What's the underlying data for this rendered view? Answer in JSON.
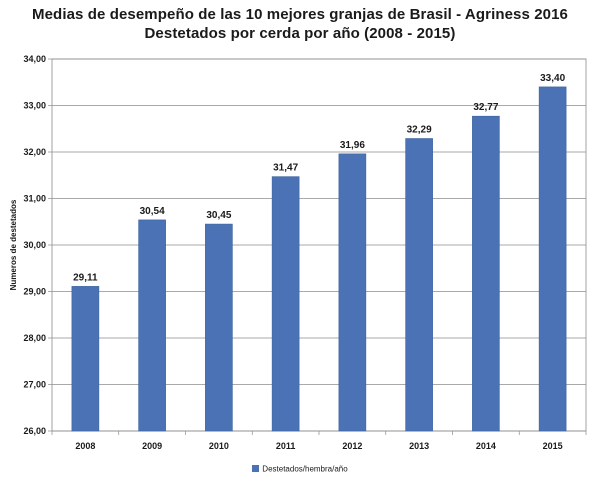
{
  "chart_data": {
    "type": "bar",
    "title": "Medias de desempeño de las 10 mejores granjas de Brasil - Agriness 2016",
    "subtitle": "Destetados por cerda por año (2008 - 2015)",
    "ylabel": "Numeros de destetados",
    "xlabel": "",
    "categories": [
      "2008",
      "2009",
      "2010",
      "2011",
      "2012",
      "2013",
      "2014",
      "2015"
    ],
    "series": [
      {
        "name": "Destetados/hembra/año",
        "values": [
          29.11,
          30.54,
          30.45,
          31.47,
          31.96,
          32.29,
          32.77,
          33.4
        ],
        "labels": [
          "29,11",
          "30,54",
          "30,45",
          "31,47",
          "31,96",
          "32,29",
          "32,77",
          "33,40"
        ],
        "color": "#4a72b5"
      }
    ],
    "ylim": [
      26,
      34
    ],
    "yticks": [
      26,
      27,
      28,
      29,
      30,
      31,
      32,
      33,
      34
    ],
    "ytick_labels": [
      "26,00",
      "27,00",
      "28,00",
      "29,00",
      "30,00",
      "31,00",
      "32,00",
      "33,00",
      "34,00"
    ],
    "grid": true,
    "legend_position": "bottom"
  }
}
